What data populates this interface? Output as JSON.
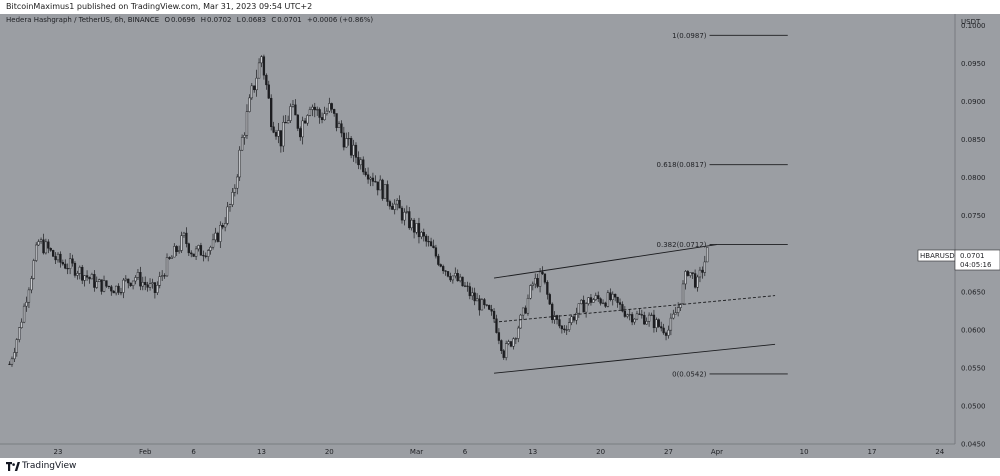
{
  "header": {
    "published": "BitcoinMaximus1 published on TradingView.com, Mar 31, 2023 09:54 UTC+2"
  },
  "ohlc": {
    "symbol": "Hedera Hashgraph / TetherUS, 6h, BINANCE",
    "o_key": "O",
    "o": "0.0696",
    "h_key": "H",
    "h": "0.0702",
    "l_key": "L",
    "l": "0.0683",
    "c_key": "C",
    "c": "0.0701",
    "change": "+0.0006 (+0.86%)"
  },
  "footer": {
    "brand": "TradingView"
  },
  "chart_data": {
    "type": "candlestick",
    "price_unit": "USDT",
    "ylim": [
      0.045,
      0.1015
    ],
    "y_ticks": [
      "0.1000",
      "0.0950",
      "0.0900",
      "0.0850",
      "0.0800",
      "0.0750",
      "0.0700",
      "0.0650",
      "0.0600",
      "0.0550",
      "0.0500",
      "0.0450"
    ],
    "x_ticks": [
      "23",
      "Feb",
      "6",
      "13",
      "20",
      "Mar",
      "6",
      "13",
      "20",
      "27",
      "Apr",
      "10",
      "17",
      "24"
    ],
    "price_label": {
      "name": "HBARUSDT",
      "price": "0.0701",
      "countdown": "04:05:16"
    },
    "fib_levels": [
      {
        "label": "1(0.0987)",
        "value": 0.0987
      },
      {
        "label": "0.618(0.0817)",
        "value": 0.0817
      },
      {
        "label": "0.382(0.0712)",
        "value": 0.0712
      },
      {
        "label": "0(0.0542)",
        "value": 0.0542
      }
    ],
    "channel": {
      "upper": [
        [
          "Mar 9",
          0.0668
        ],
        [
          "Apr 1",
          0.0712
        ]
      ],
      "middle": [
        [
          "Mar 9",
          0.061
        ],
        [
          "Apr 7",
          0.0645
        ]
      ],
      "lower": [
        [
          "Mar 9",
          0.0543
        ],
        [
          "Apr 7",
          0.0581
        ]
      ]
    },
    "price_path": [
      [
        "Jan 18",
        0.0555
      ],
      [
        "Jan 19",
        0.06
      ],
      [
        "Jan 20",
        0.066
      ],
      [
        "Jan 21",
        0.0715
      ],
      [
        "Jan 22",
        0.0705
      ],
      [
        "Jan 23",
        0.069
      ],
      [
        "Jan 25",
        0.068
      ],
      [
        "Jan 27",
        0.066
      ],
      [
        "Jan 29",
        0.0655
      ],
      [
        "Jan 31",
        0.067
      ],
      [
        "Feb 2",
        0.065
      ],
      [
        "Feb 3",
        0.068
      ],
      [
        "Feb 5",
        0.072
      ],
      [
        "Feb 6",
        0.07
      ],
      [
        "Feb 8",
        0.071
      ],
      [
        "Feb 9",
        0.074
      ],
      [
        "Feb 10",
        0.077
      ],
      [
        "Feb 11",
        0.085
      ],
      [
        "Feb 12",
        0.091
      ],
      [
        "Feb 13",
        0.096
      ],
      [
        "Feb 14",
        0.088
      ],
      [
        "Feb 15",
        0.085
      ],
      [
        "Feb 16",
        0.089
      ],
      [
        "Feb 17",
        0.0865
      ],
      [
        "Feb 18",
        0.09
      ],
      [
        "Feb 19",
        0.088
      ],
      [
        "Feb 20",
        0.089
      ],
      [
        "Feb 21",
        0.0865
      ],
      [
        "Feb 22",
        0.084
      ],
      [
        "Feb 24",
        0.081
      ],
      [
        "Feb 26",
        0.0775
      ],
      [
        "Feb 28",
        0.0745
      ],
      [
        "Mar 2",
        0.0715
      ],
      [
        "Mar 4",
        0.068
      ],
      [
        "Mar 6",
        0.0655
      ],
      [
        "Mar 7",
        0.064
      ],
      [
        "Mar 9",
        0.0615
      ],
      [
        "Mar 10",
        0.057
      ],
      [
        "Mar 11",
        0.059
      ],
      [
        "Mar 12",
        0.062
      ],
      [
        "Mar 13",
        0.066
      ],
      [
        "Mar 14",
        0.067
      ],
      [
        "Mar 15",
        0.062
      ],
      [
        "Mar 16",
        0.06
      ],
      [
        "Mar 18",
        0.063
      ],
      [
        "Mar 19",
        0.064
      ],
      [
        "Mar 21",
        0.064
      ],
      [
        "Mar 23",
        0.062
      ],
      [
        "Mar 25",
        0.0615
      ],
      [
        "Mar 26",
        0.0605
      ],
      [
        "Mar 27",
        0.06
      ],
      [
        "Mar 28",
        0.063
      ],
      [
        "Mar 29",
        0.068
      ],
      [
        "Mar 30",
        0.066
      ],
      [
        "Mar 31",
        0.0701
      ]
    ]
  },
  "colors": {
    "background": "#9b9ea3",
    "candle": "#1c1d20",
    "level_line": "#1c1d20"
  }
}
